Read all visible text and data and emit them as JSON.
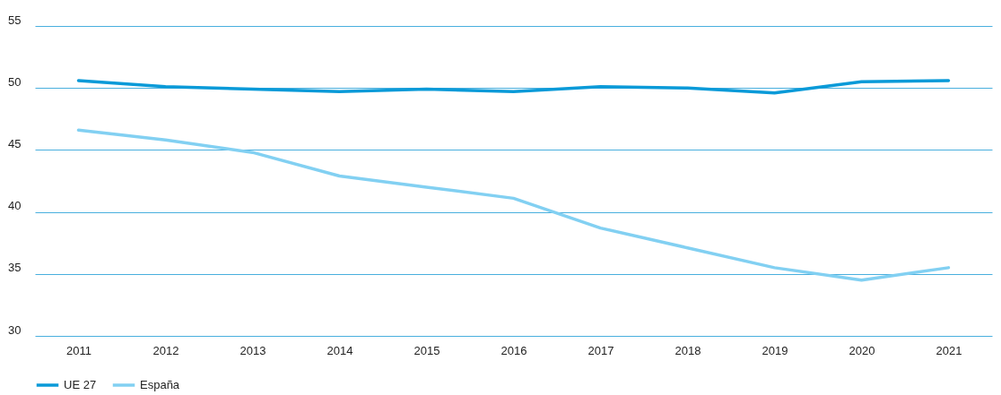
{
  "chart_data": {
    "type": "line",
    "categories": [
      "2011",
      "2012",
      "2013",
      "2014",
      "2015",
      "2016",
      "2017",
      "2018",
      "2019",
      "2020",
      "2021"
    ],
    "series": [
      {
        "name": "UE 27",
        "color": "#0a9ad8",
        "values": [
          50.6,
          50.1,
          49.9,
          49.7,
          49.9,
          49.7,
          50.1,
          50.0,
          49.6,
          50.5,
          50.6
        ]
      },
      {
        "name": "España",
        "color": "#82d0f2",
        "values": [
          46.6,
          45.8,
          44.8,
          42.9,
          42.0,
          41.1,
          38.7,
          37.1,
          35.5,
          34.5,
          35.5
        ]
      }
    ],
    "ylim": [
      30,
      55
    ],
    "yticks": [
      30,
      35,
      40,
      45,
      50,
      55
    ],
    "grid": "y",
    "legend": "bottom",
    "marker": "none",
    "line_style": "solid"
  }
}
